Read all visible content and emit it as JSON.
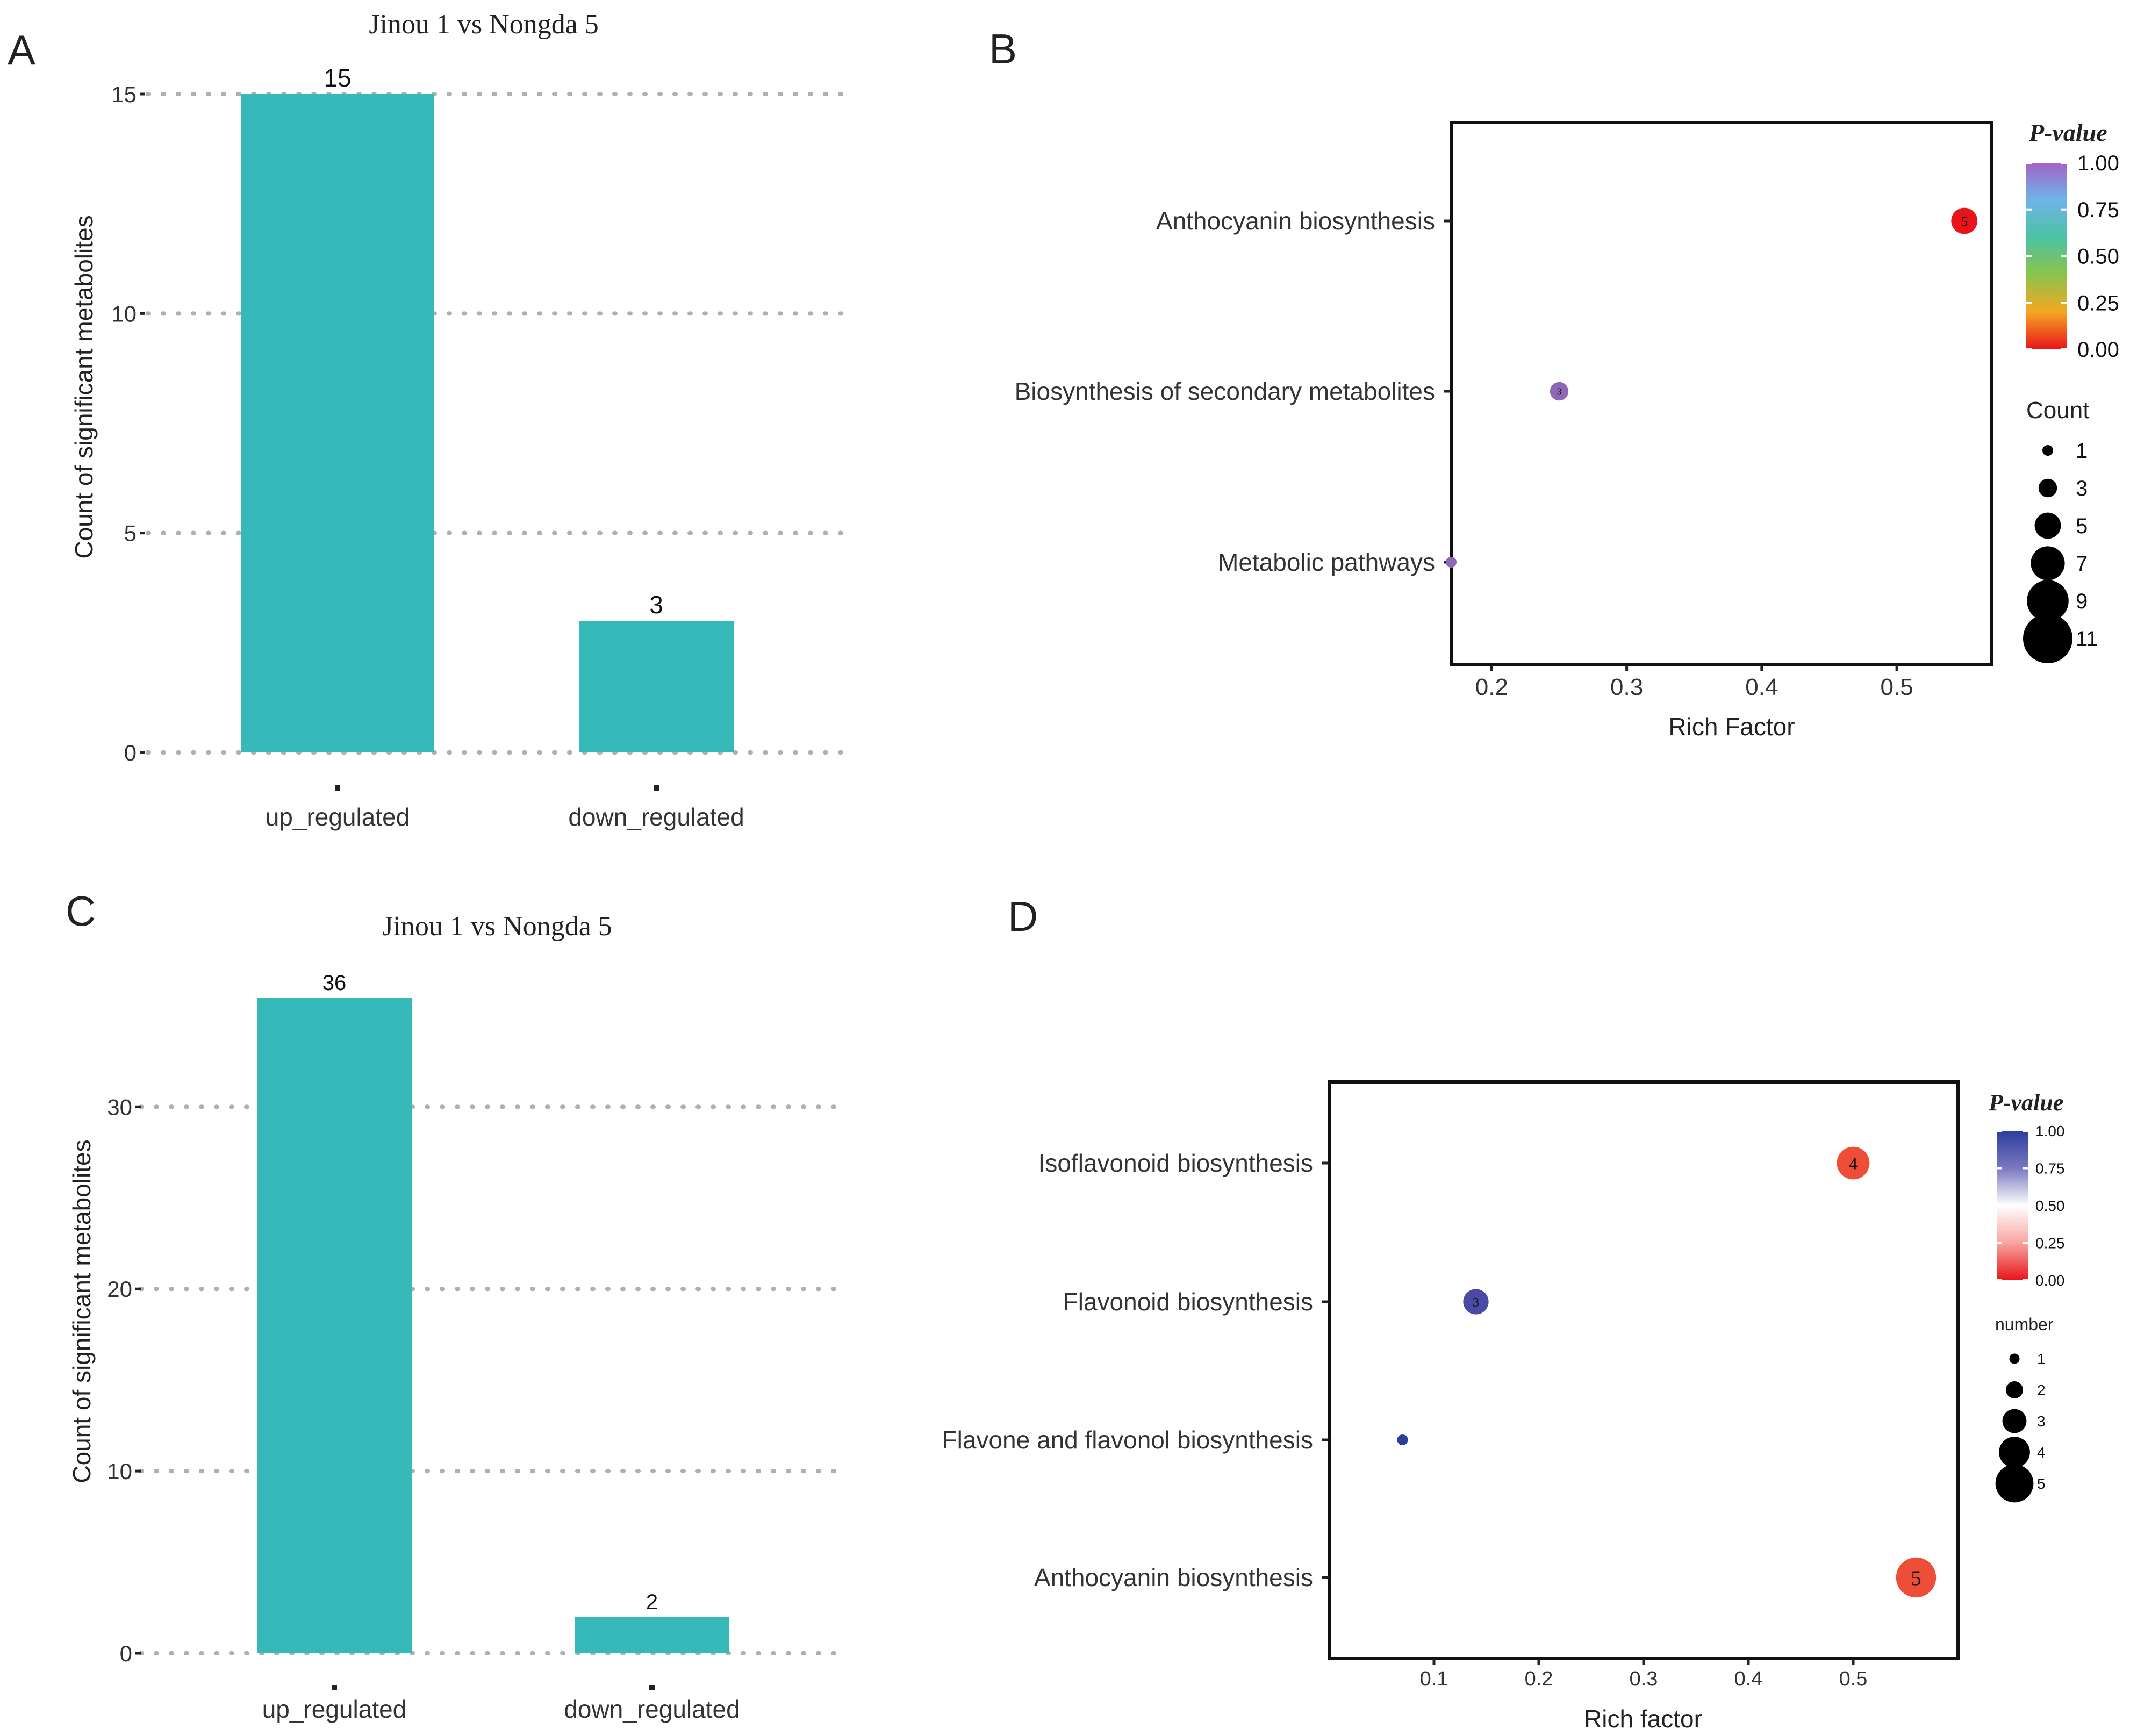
{
  "colors": {
    "bar": "#36B9B9",
    "grid": "#b0b0b0",
    "axis": "#222222",
    "text": "#333333"
  },
  "panel_letters": [
    "A",
    "B",
    "C",
    "D"
  ],
  "chart_data": [
    {
      "panel": "A",
      "type": "bar",
      "title": "Jinou 1 vs Nongda 5",
      "xlabel": "",
      "ylabel": "Count of significant metabolites",
      "categories": [
        "up_regulated",
        "down_regulated"
      ],
      "values": [
        15,
        3
      ],
      "data_labels": [
        "15",
        "3"
      ],
      "ylim": [
        0,
        15
      ],
      "yticks": [
        0,
        5,
        10,
        15
      ],
      "grid": "horizontal dotted"
    },
    {
      "panel": "B",
      "type": "scatter",
      "title": "",
      "xlabel": "Rich Factor",
      "ylabel": "",
      "xlim": [
        0.17,
        0.57
      ],
      "xticks": [
        0.2,
        0.3,
        0.4,
        0.5
      ],
      "categories": [
        "Anthocyanin biosynthesis",
        "Biosynthesis of secondary metabolites",
        "Metabolic pathways"
      ],
      "points": [
        {
          "pathway": "Anthocyanin biosynthesis",
          "rich_factor": 0.55,
          "count": 5,
          "p_value": 0.0,
          "color": "#E8141A",
          "label": "5"
        },
        {
          "pathway": "Biosynthesis of secondary metabolites",
          "rich_factor": 0.25,
          "count": 3,
          "p_value": 1.0,
          "color": "#8E68B5",
          "label": "3"
        },
        {
          "pathway": "Metabolic pathways",
          "rich_factor": 0.17,
          "count": 1,
          "p_value": 1.0,
          "color": "#8E68B5",
          "label": ""
        }
      ],
      "color_legend": {
        "title": "P-value",
        "ticks": [
          "1.00",
          "0.75",
          "0.50",
          "0.25",
          "0.00"
        ],
        "gradient": [
          "#A463C8",
          "#6FB4E8",
          "#4CC2A2",
          "#8BC34A",
          "#F5A623",
          "#E8141A"
        ]
      },
      "size_legend": {
        "title": "Count",
        "values": [
          1,
          3,
          5,
          7,
          9,
          11
        ]
      }
    },
    {
      "panel": "C",
      "type": "bar",
      "title": "Jinou 1 vs Nongda 5",
      "xlabel": "",
      "ylabel": "Count of significant metabolites",
      "categories": [
        "up_regulated",
        "down_regulated"
      ],
      "values": [
        36,
        2
      ],
      "data_labels": [
        "36",
        "2"
      ],
      "ylim": [
        0,
        36
      ],
      "yticks": [
        0,
        10,
        20,
        30
      ],
      "grid": "horizontal dotted"
    },
    {
      "panel": "D",
      "type": "scatter",
      "title": "",
      "xlabel": "Rich factor",
      "ylabel": "",
      "xlim": [
        0.0,
        0.6
      ],
      "xticks": [
        0.1,
        0.2,
        0.3,
        0.4,
        0.5
      ],
      "categories": [
        "Isoflavonoid biosynthesis",
        "Flavonoid biosynthesis",
        "Flavone and flavonol biosynthesis",
        "Anthocyanin biosynthesis"
      ],
      "points": [
        {
          "pathway": "Isoflavonoid biosynthesis",
          "rich_factor": 0.5,
          "count": 4,
          "p_value": 0.0,
          "color": "#EE4D38",
          "label": "4"
        },
        {
          "pathway": "Flavonoid biosynthesis",
          "rich_factor": 0.14,
          "count": 3,
          "p_value": 1.0,
          "color": "#4A4AA6",
          "label": "3"
        },
        {
          "pathway": "Flavone and flavonol biosynthesis",
          "rich_factor": 0.07,
          "count": 1,
          "p_value": 1.0,
          "color": "#2B3E9E",
          "label": ""
        },
        {
          "pathway": "Anthocyanin biosynthesis",
          "rich_factor": 0.56,
          "count": 5,
          "p_value": 0.0,
          "color": "#EE4D38",
          "label": "5"
        }
      ],
      "color_legend": {
        "title": "P-value",
        "ticks": [
          "1.00",
          "0.75",
          "0.50",
          "0.25",
          "0.00"
        ],
        "gradient": [
          "#2B3E9E",
          "#7A78C0",
          "#FFFFFF",
          "#F7A5A0",
          "#E8141A"
        ]
      },
      "size_legend": {
        "title": "number",
        "values": [
          1,
          2,
          3,
          4,
          5
        ]
      }
    }
  ]
}
